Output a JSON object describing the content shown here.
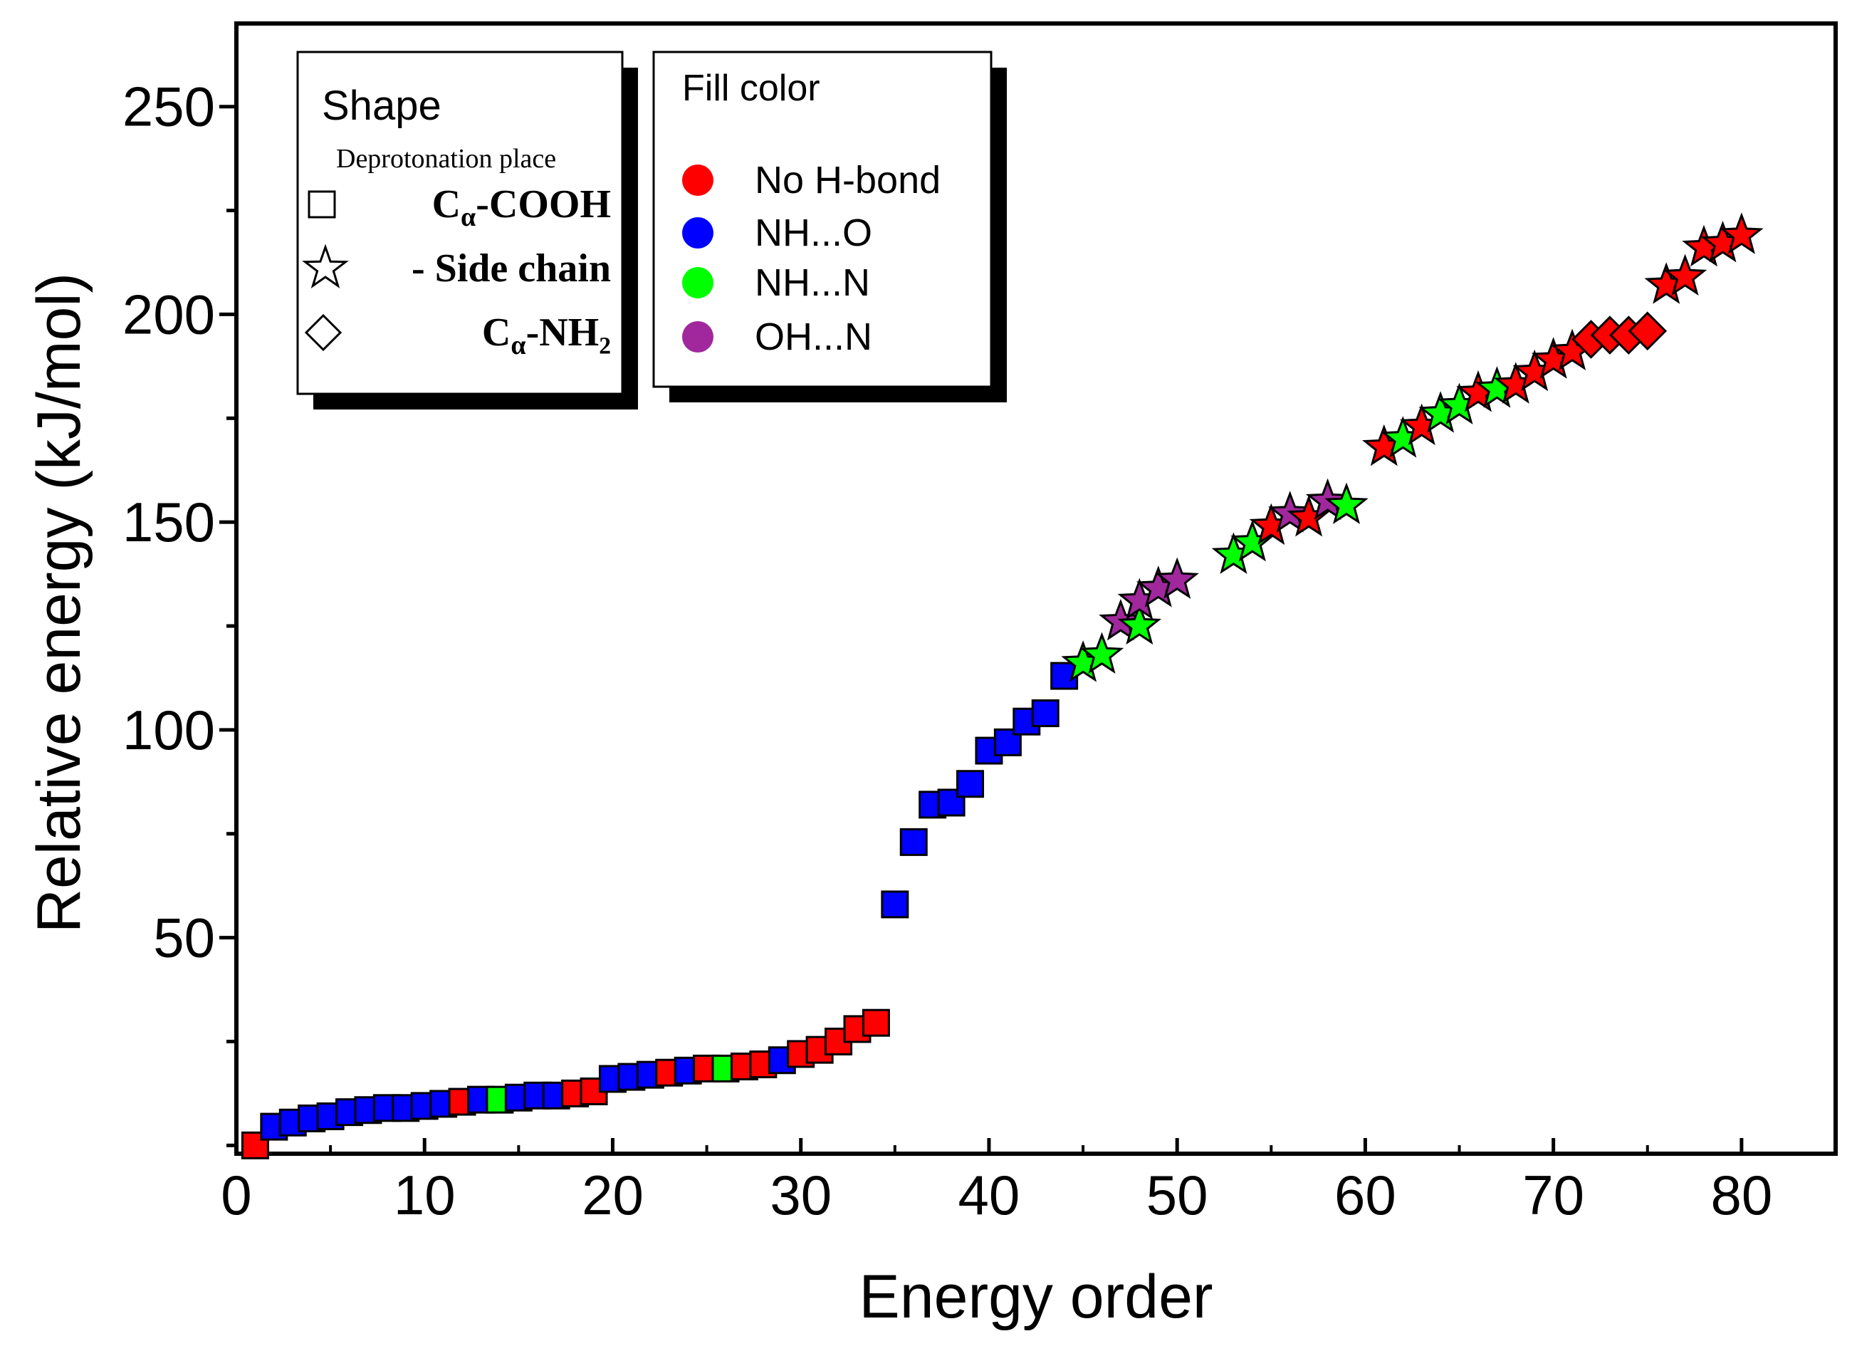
{
  "chart_data": {
    "type": "scatter",
    "title": "",
    "xlabel": "Energy order",
    "ylabel": "Relative energy (kJ/mol)",
    "xlim": [
      0,
      85
    ],
    "ylim": [
      -2,
      270
    ],
    "xticks": [
      0,
      10,
      20,
      30,
      40,
      50,
      60,
      70,
      80
    ],
    "yticks": [
      50,
      100,
      150,
      200,
      250
    ],
    "grid": false,
    "colors": {
      "No H-bond": "#ff0000",
      "NH...O": "#0000ff",
      "NH...N": "#00ff00",
      "OH...N": "#a0289c"
    },
    "legend_shape": {
      "title": "Shape",
      "subtitle": "Deprotonation place",
      "entries": [
        {
          "shape": "square",
          "prefix": "C",
          "sub": "α",
          "suffix": "-COOH"
        },
        {
          "shape": "star",
          "prefix": "",
          "sub": "",
          "suffix": "- Side chain"
        },
        {
          "shape": "diamond",
          "prefix": "C",
          "sub": "α",
          "suffix": "-NH₂"
        }
      ]
    },
    "legend_color": {
      "title": "Fill color",
      "entries": [
        "No H-bond",
        "NH...O",
        "NH...N",
        "OH...N"
      ]
    },
    "points": [
      {
        "x": 1,
        "y": 0,
        "shape": "square",
        "color": "No H-bond"
      },
      {
        "x": 2,
        "y": 4.5,
        "shape": "square",
        "color": "NH...O"
      },
      {
        "x": 3,
        "y": 5.5,
        "shape": "square",
        "color": "NH...O"
      },
      {
        "x": 4,
        "y": 6.5,
        "shape": "square",
        "color": "NH...O"
      },
      {
        "x": 5,
        "y": 7,
        "shape": "square",
        "color": "NH...O"
      },
      {
        "x": 6,
        "y": 8,
        "shape": "square",
        "color": "NH...O"
      },
      {
        "x": 7,
        "y": 8.5,
        "shape": "square",
        "color": "NH...O"
      },
      {
        "x": 8,
        "y": 9,
        "shape": "square",
        "color": "NH...O"
      },
      {
        "x": 9,
        "y": 9,
        "shape": "square",
        "color": "NH...O"
      },
      {
        "x": 10,
        "y": 9.5,
        "shape": "square",
        "color": "NH...O"
      },
      {
        "x": 11,
        "y": 10,
        "shape": "square",
        "color": "NH...O"
      },
      {
        "x": 12,
        "y": 10.5,
        "shape": "square",
        "color": "No H-bond"
      },
      {
        "x": 13,
        "y": 11,
        "shape": "square",
        "color": "NH...O"
      },
      {
        "x": 14,
        "y": 11,
        "shape": "square",
        "color": "NH...N"
      },
      {
        "x": 15,
        "y": 11.5,
        "shape": "square",
        "color": "NH...O"
      },
      {
        "x": 16,
        "y": 12,
        "shape": "square",
        "color": "NH...O"
      },
      {
        "x": 17,
        "y": 12,
        "shape": "square",
        "color": "NH...O"
      },
      {
        "x": 18,
        "y": 12.5,
        "shape": "square",
        "color": "No H-bond"
      },
      {
        "x": 19,
        "y": 13,
        "shape": "square",
        "color": "No H-bond"
      },
      {
        "x": 20,
        "y": 16,
        "shape": "square",
        "color": "NH...O"
      },
      {
        "x": 21,
        "y": 16.5,
        "shape": "square",
        "color": "NH...O"
      },
      {
        "x": 22,
        "y": 17,
        "shape": "square",
        "color": "NH...O"
      },
      {
        "x": 23,
        "y": 17.5,
        "shape": "square",
        "color": "No H-bond"
      },
      {
        "x": 24,
        "y": 18,
        "shape": "square",
        "color": "NH...O"
      },
      {
        "x": 25,
        "y": 18.5,
        "shape": "square",
        "color": "No H-bond"
      },
      {
        "x": 26,
        "y": 18.5,
        "shape": "square",
        "color": "NH...N"
      },
      {
        "x": 27,
        "y": 19,
        "shape": "square",
        "color": "No H-bond"
      },
      {
        "x": 28,
        "y": 19.5,
        "shape": "square",
        "color": "No H-bond"
      },
      {
        "x": 29,
        "y": 20.5,
        "shape": "square",
        "color": "NH...O"
      },
      {
        "x": 30,
        "y": 22,
        "shape": "square",
        "color": "No H-bond"
      },
      {
        "x": 31,
        "y": 23,
        "shape": "square",
        "color": "No H-bond"
      },
      {
        "x": 32,
        "y": 25,
        "shape": "square",
        "color": "No H-bond"
      },
      {
        "x": 33,
        "y": 28,
        "shape": "square",
        "color": "No H-bond"
      },
      {
        "x": 34,
        "y": 29.5,
        "shape": "square",
        "color": "No H-bond"
      },
      {
        "x": 35,
        "y": 58,
        "shape": "square",
        "color": "NH...O"
      },
      {
        "x": 36,
        "y": 73,
        "shape": "square",
        "color": "NH...O"
      },
      {
        "x": 37,
        "y": 82,
        "shape": "square",
        "color": "NH...O"
      },
      {
        "x": 38,
        "y": 82.5,
        "shape": "square",
        "color": "NH...O"
      },
      {
        "x": 39,
        "y": 87,
        "shape": "square",
        "color": "NH...O"
      },
      {
        "x": 40,
        "y": 95,
        "shape": "square",
        "color": "NH...O"
      },
      {
        "x": 41,
        "y": 97,
        "shape": "square",
        "color": "NH...O"
      },
      {
        "x": 42,
        "y": 102,
        "shape": "square",
        "color": "NH...O"
      },
      {
        "x": 43,
        "y": 104,
        "shape": "square",
        "color": "NH...O"
      },
      {
        "x": 44,
        "y": 113,
        "shape": "square",
        "color": "NH...O"
      },
      {
        "x": 45,
        "y": 116,
        "shape": "star",
        "color": "NH...N"
      },
      {
        "x": 46,
        "y": 118,
        "shape": "star",
        "color": "NH...N"
      },
      {
        "x": 47,
        "y": 126,
        "shape": "star",
        "color": "OH...N"
      },
      {
        "x": 48,
        "y": 125,
        "shape": "star",
        "color": "NH...N"
      },
      {
        "x": 48,
        "y": 131,
        "shape": "star",
        "color": "OH...N"
      },
      {
        "x": 49,
        "y": 134,
        "shape": "star",
        "color": "OH...N"
      },
      {
        "x": 50,
        "y": 136,
        "shape": "star",
        "color": "OH...N"
      },
      {
        "x": 53,
        "y": 142,
        "shape": "star",
        "color": "NH...N"
      },
      {
        "x": 54,
        "y": 145,
        "shape": "star",
        "color": "NH...N"
      },
      {
        "x": 55,
        "y": 149,
        "shape": "star",
        "color": "No H-bond"
      },
      {
        "x": 56,
        "y": 152,
        "shape": "star",
        "color": "OH...N"
      },
      {
        "x": 57,
        "y": 151,
        "shape": "star",
        "color": "No H-bond"
      },
      {
        "x": 58,
        "y": 155,
        "shape": "star",
        "color": "OH...N"
      },
      {
        "x": 59,
        "y": 154,
        "shape": "star",
        "color": "NH...N"
      },
      {
        "x": 61,
        "y": 168,
        "shape": "star",
        "color": "No H-bond"
      },
      {
        "x": 62,
        "y": 170,
        "shape": "star",
        "color": "NH...N"
      },
      {
        "x": 63,
        "y": 173,
        "shape": "star",
        "color": "No H-bond"
      },
      {
        "x": 64,
        "y": 176,
        "shape": "star",
        "color": "NH...N"
      },
      {
        "x": 65,
        "y": 178,
        "shape": "star",
        "color": "NH...N"
      },
      {
        "x": 66,
        "y": 181,
        "shape": "star",
        "color": "No H-bond"
      },
      {
        "x": 67,
        "y": 182,
        "shape": "star",
        "color": "NH...N"
      },
      {
        "x": 68,
        "y": 183,
        "shape": "star",
        "color": "No H-bond"
      },
      {
        "x": 69,
        "y": 186,
        "shape": "star",
        "color": "No H-bond"
      },
      {
        "x": 70,
        "y": 189,
        "shape": "star",
        "color": "No H-bond"
      },
      {
        "x": 71,
        "y": 191,
        "shape": "star",
        "color": "No H-bond"
      },
      {
        "x": 72,
        "y": 194,
        "shape": "diamond",
        "color": "No H-bond"
      },
      {
        "x": 73,
        "y": 195,
        "shape": "diamond",
        "color": "No H-bond"
      },
      {
        "x": 74,
        "y": 195,
        "shape": "diamond",
        "color": "No H-bond"
      },
      {
        "x": 75,
        "y": 196,
        "shape": "diamond",
        "color": "No H-bond"
      },
      {
        "x": 76,
        "y": 207,
        "shape": "star",
        "color": "No H-bond"
      },
      {
        "x": 77,
        "y": 209,
        "shape": "star",
        "color": "No H-bond"
      },
      {
        "x": 78,
        "y": 216,
        "shape": "star",
        "color": "No H-bond"
      },
      {
        "x": 79,
        "y": 217,
        "shape": "star",
        "color": "No H-bond"
      },
      {
        "x": 80,
        "y": 219,
        "shape": "star",
        "color": "No H-bond"
      }
    ]
  }
}
